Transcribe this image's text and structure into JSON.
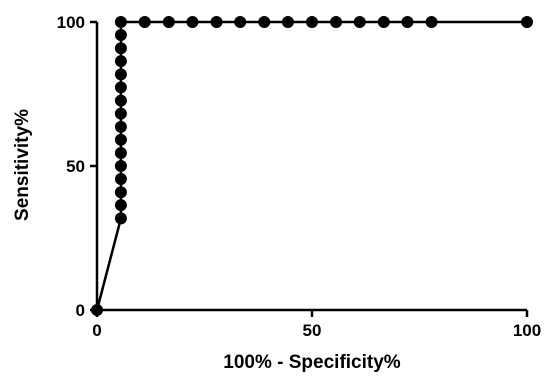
{
  "chart_data": {
    "type": "line",
    "title": "",
    "xlabel": "100% - Specificity%",
    "ylabel": "Sensitivity%",
    "xlim": [
      0,
      100
    ],
    "ylim": [
      0,
      100
    ],
    "x_ticks": [
      "0",
      "50",
      "100"
    ],
    "y_ticks": [
      "0",
      "50",
      "100"
    ],
    "grid": false,
    "legend": "none",
    "series": [
      {
        "color": "#000000",
        "marker": "circle",
        "points": [
          [
            0,
            0
          ],
          [
            5.56,
            31.8
          ],
          [
            5.56,
            36.4
          ],
          [
            5.56,
            40.9
          ],
          [
            5.56,
            45.5
          ],
          [
            5.56,
            50.0
          ],
          [
            5.56,
            54.5
          ],
          [
            5.56,
            59.1
          ],
          [
            5.56,
            63.6
          ],
          [
            5.56,
            68.2
          ],
          [
            5.56,
            72.7
          ],
          [
            5.56,
            77.3
          ],
          [
            5.56,
            81.8
          ],
          [
            5.56,
            86.4
          ],
          [
            5.56,
            90.9
          ],
          [
            5.56,
            95.5
          ],
          [
            5.56,
            100
          ],
          [
            11.1,
            100
          ],
          [
            16.7,
            100
          ],
          [
            22.2,
            100
          ],
          [
            27.8,
            100
          ],
          [
            33.3,
            100
          ],
          [
            38.9,
            100
          ],
          [
            44.4,
            100
          ],
          [
            50.0,
            100
          ],
          [
            55.6,
            100
          ],
          [
            61.1,
            100
          ],
          [
            66.7,
            100
          ],
          [
            72.2,
            100
          ],
          [
            77.8,
            100
          ],
          [
            100,
            100
          ]
        ]
      }
    ]
  }
}
